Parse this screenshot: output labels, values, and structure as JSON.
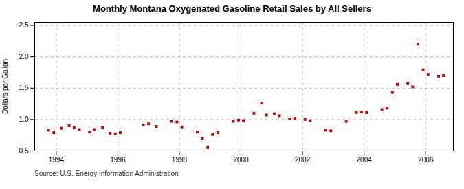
{
  "chart_data": {
    "type": "scatter",
    "title": "Monthly Montana Oxygenated Gasoline Retail Sales by All Sellers",
    "ylabel": "Dollars per Gallon",
    "source": "Source: U.S. Energy Information Administration",
    "x": [
      1993.75,
      1993.92,
      1994.17,
      1994.42,
      1994.58,
      1994.75,
      1995.08,
      1995.25,
      1995.5,
      1995.75,
      1995.92,
      1996.08,
      1996.83,
      1997.0,
      1997.25,
      1997.75,
      1997.92,
      1998.08,
      1998.58,
      1998.75,
      1998.92,
      1999.08,
      1999.25,
      1999.75,
      1999.92,
      2000.08,
      2000.42,
      2000.67,
      2000.83,
      2001.08,
      2001.25,
      2001.58,
      2001.75,
      2002.08,
      2002.25,
      2002.75,
      2002.92,
      2003.42,
      2003.75,
      2003.92,
      2004.08,
      2004.58,
      2004.75,
      2004.92,
      2005.08,
      2005.42,
      2005.58,
      2005.75,
      2005.92,
      2006.08,
      2006.42,
      2006.58
    ],
    "values": [
      0.83,
      0.79,
      0.86,
      0.9,
      0.87,
      0.84,
      0.8,
      0.84,
      0.87,
      0.78,
      0.77,
      0.79,
      0.91,
      0.93,
      0.89,
      0.97,
      0.96,
      0.88,
      0.8,
      0.7,
      0.55,
      0.76,
      0.79,
      0.97,
      0.99,
      0.98,
      1.1,
      1.26,
      1.07,
      1.09,
      1.06,
      1.01,
      1.02,
      1.0,
      0.98,
      0.83,
      0.82,
      0.97,
      1.11,
      1.12,
      1.11,
      1.16,
      1.18,
      1.43,
      1.56,
      1.58,
      1.52,
      2.2,
      1.79,
      1.72,
      1.69,
      1.7
    ],
    "color": "#cc0000",
    "marker": "square",
    "xlim": [
      1993.3,
      2006.9
    ],
    "xticks": [
      1994,
      1996,
      1998,
      2000,
      2002,
      2004,
      2006
    ],
    "ylim": [
      0.5,
      2.55
    ],
    "yticks": [
      0.5,
      {
        "value": 1.0,
        "label": "1.0"
      },
      1.5,
      {
        "value": 2.0,
        "label": "2.0"
      },
      2.5
    ],
    "grid": true
  }
}
